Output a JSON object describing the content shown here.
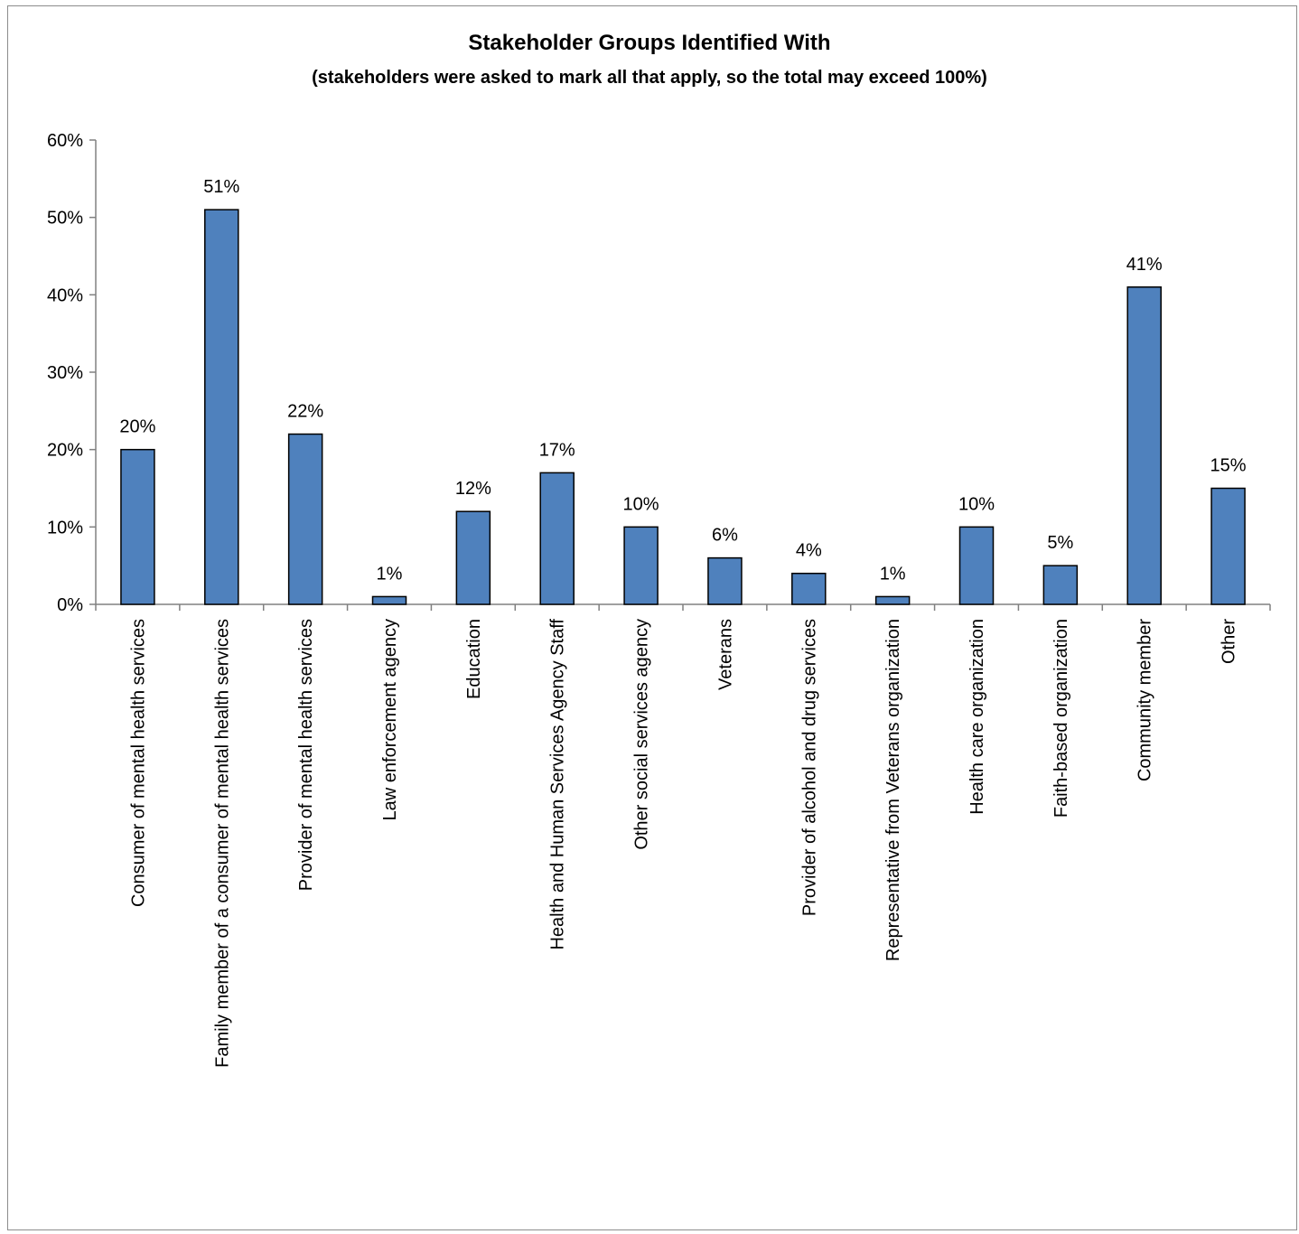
{
  "chart_data": {
    "type": "bar",
    "title": "Stakeholder Groups Identified With",
    "subtitle": "(stakeholders were asked to mark all that apply, so the total may exceed 100%)",
    "categories": [
      "Consumer of mental health services",
      "Family member of a consumer of mental health services",
      "Provider of mental health services",
      "Law enforcement agency",
      "Education",
      "Health and Human Services Agency Staff",
      "Other social services agency",
      "Veterans",
      "Provider of alcohol and drug services",
      "Representative from Veterans organization",
      "Health care organization",
      "Faith-based organization",
      "Community member",
      "Other"
    ],
    "values": [
      20,
      51,
      22,
      1,
      12,
      17,
      10,
      6,
      4,
      1,
      10,
      5,
      41,
      15
    ],
    "data_labels": [
      "20%",
      "51%",
      "22%",
      "1%",
      "12%",
      "17%",
      "10%",
      "6%",
      "4%",
      "1%",
      "10%",
      "5%",
      "41%",
      "15%"
    ],
    "y_ticks": [
      "0%",
      "10%",
      "20%",
      "30%",
      "40%",
      "50%",
      "60%"
    ],
    "ylim": [
      0,
      60
    ],
    "grid": false,
    "legend": "none",
    "colors": {
      "bar_fill": "#4f81bd",
      "bar_stroke": "#000000",
      "axis": "#808080"
    }
  }
}
